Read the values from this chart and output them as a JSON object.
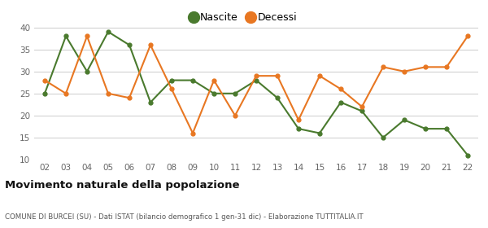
{
  "years": [
    "02",
    "03",
    "04",
    "05",
    "06",
    "07",
    "08",
    "09",
    "10",
    "11",
    "12",
    "13",
    "14",
    "15",
    "16",
    "17",
    "18",
    "19",
    "20",
    "21",
    "22"
  ],
  "nascite": [
    25,
    38,
    30,
    39,
    36,
    23,
    28,
    28,
    25,
    25,
    28,
    24,
    17,
    16,
    23,
    21,
    15,
    19,
    17,
    17,
    11
  ],
  "decessi": [
    28,
    25,
    38,
    25,
    24,
    36,
    26,
    16,
    28,
    20,
    29,
    29,
    19,
    29,
    26,
    22,
    31,
    30,
    31,
    31,
    38
  ],
  "nascite_color": "#4a7a2e",
  "decessi_color": "#e87722",
  "title": "Movimento naturale della popolazione",
  "subtitle": "COMUNE DI BURCEI (SU) - Dati ISTAT (bilancio demografico 1 gen-31 dic) - Elaborazione TUTTITALIA.IT",
  "legend_nascite": "Nascite",
  "legend_decessi": "Decessi",
  "ylim_min": 10,
  "ylim_max": 40,
  "yticks": [
    10,
    15,
    20,
    25,
    30,
    35,
    40
  ],
  "background_color": "#ffffff",
  "grid_color": "#cccccc"
}
